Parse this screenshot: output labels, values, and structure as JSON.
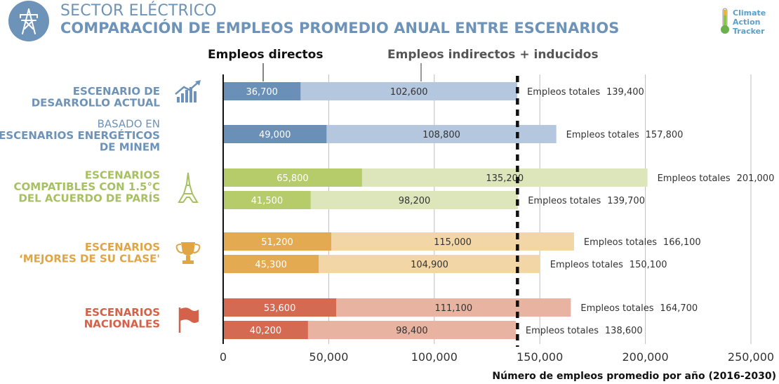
{
  "header": {
    "title_line1": "SECTOR ELÉCTRICO",
    "title_line2": "COMPARACIÓN DE EMPLEOS PROMEDIO ANUAL ENTRE ESCENARIOS",
    "icon": "power-tower-icon"
  },
  "logo": {
    "line1": "Climate",
    "line2": "Action",
    "line3": "Tracker",
    "icon": "thermometer-icon"
  },
  "legend": {
    "direct": "Empleos directos",
    "indirect": "Empleos indirectos + inducidos"
  },
  "colors": {
    "blue_dark": "#6a90b7",
    "blue_light": "#b4c7de",
    "green_dark": "#b6cb6a",
    "green_light": "#dde6ba",
    "orange_dark": "#e4aa52",
    "orange_light": "#f2d6a6",
    "red_dark": "#d46a51",
    "red_light": "#e9b3a1",
    "label_blue": "#6e93b8",
    "label_green": "#a8c064",
    "label_orange": "#e0a545",
    "label_red": "#d4614a",
    "text_dark": "#333333",
    "grid": "#bdbdbd"
  },
  "groups": [
    {
      "label": [
        "ESCENARIO DE",
        "DESARROLLO ACTUAL"
      ],
      "bold": [
        true,
        true
      ],
      "color": "label_blue",
      "icon": "rising-chart-icon"
    },
    {
      "label": [
        "BASADO EN",
        "ESCENARIOS ENERGÉTICOS",
        "DE MINEM"
      ],
      "bold": [
        false,
        true,
        true
      ],
      "color": "label_blue",
      "icon": ""
    },
    {
      "label": [
        "ESCENARIOS",
        "COMPATIBLES CON 1.5°C",
        "DEL ACUERDO DE PARÍS"
      ],
      "bold": [
        true,
        true,
        true
      ],
      "color": "label_green",
      "icon": "eiffel-tower-icon"
    },
    {
      "label": [
        "ESCENARIOS",
        "‘MEJORES DE SU CLASE'"
      ],
      "bold": [
        true,
        true
      ],
      "color": "label_orange",
      "icon": "trophy-icon"
    },
    {
      "label": [
        "ESCENARIOS",
        "NACIONALES"
      ],
      "bold": [
        true,
        true
      ],
      "color": "label_red",
      "icon": "flag-icon"
    }
  ],
  "chart_data": {
    "type": "bar",
    "orientation": "horizontal",
    "stacked": true,
    "xlabel": "Número de empleos promedio por año (2016-2030)",
    "xlim": [
      0,
      250000
    ],
    "xticks": [
      0,
      50000,
      100000,
      150000,
      200000,
      250000
    ],
    "xtick_labels": [
      "0",
      "50,000",
      "100,000",
      "150,000",
      "200,000",
      "250,000"
    ],
    "grid": "vertical",
    "reference_line": 139400,
    "series": [
      {
        "name": "Empleos directos",
        "values": [
          36700,
          49000,
          65800,
          41500,
          51200,
          45300,
          53600,
          40200
        ]
      },
      {
        "name": "Empleos indirectos + inducidos",
        "values": [
          102600,
          108800,
          135200,
          98200,
          115000,
          104900,
          111100,
          98400
        ]
      }
    ],
    "bars": [
      {
        "group": 0,
        "palette": "blue",
        "direct": 36700,
        "direct_label": "36,700",
        "indirect": 102600,
        "indirect_label": "102,600",
        "total_text": "Empleos totales",
        "total_label": "139,400"
      },
      {
        "group": 1,
        "palette": "blue",
        "direct": 49000,
        "direct_label": "49,000",
        "indirect": 108800,
        "indirect_label": "108,800",
        "total_text": "Empleos totales",
        "total_label": "157,800"
      },
      {
        "group": 2,
        "palette": "green",
        "direct": 65800,
        "direct_label": "65,800",
        "indirect": 135200,
        "indirect_label": "135,200",
        "total_text": "Empleos totales",
        "total_label": "201,000"
      },
      {
        "group": 2,
        "palette": "green",
        "direct": 41500,
        "direct_label": "41,500",
        "indirect": 98200,
        "indirect_label": "98,200",
        "total_text": "Empleos totales",
        "total_label": "139,700"
      },
      {
        "group": 3,
        "palette": "orange",
        "direct": 51200,
        "direct_label": "51,200",
        "indirect": 115000,
        "indirect_label": "115,000",
        "total_text": "Empleos totales",
        "total_label": "166,100"
      },
      {
        "group": 3,
        "palette": "orange",
        "direct": 45300,
        "direct_label": "45,300",
        "indirect": 104900,
        "indirect_label": "104,900",
        "total_text": "Empleos totales",
        "total_label": "150,100"
      },
      {
        "group": 4,
        "palette": "red",
        "direct": 53600,
        "direct_label": "53,600",
        "indirect": 111100,
        "indirect_label": "111,100",
        "total_text": "Empleos totales",
        "total_label": "164,700"
      },
      {
        "group": 4,
        "palette": "red",
        "direct": 40200,
        "direct_label": "40,200",
        "indirect": 98400,
        "indirect_label": "98,400",
        "total_text": "Empleos totales",
        "total_label": "138,600"
      }
    ]
  }
}
